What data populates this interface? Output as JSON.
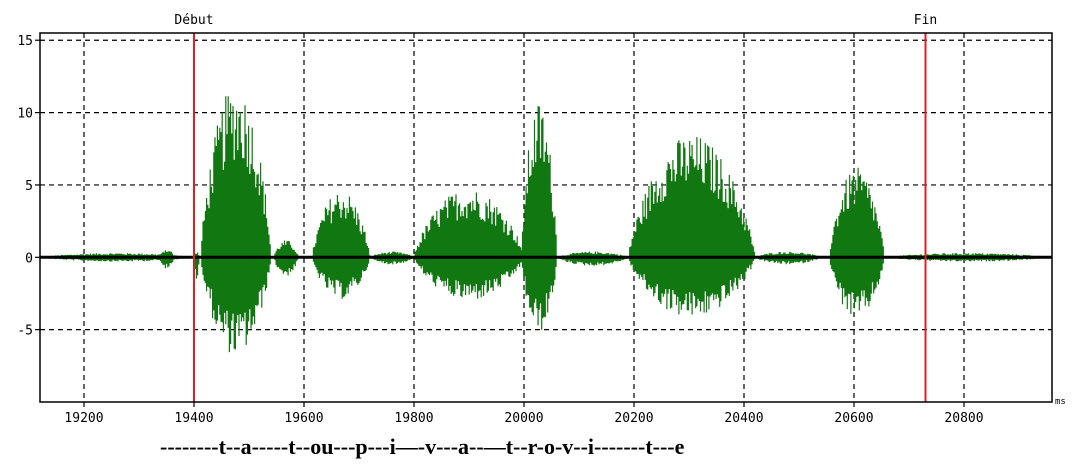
{
  "chart_data": {
    "type": "line",
    "title": "",
    "xlabel": "",
    "ylabel": "",
    "unit_label": "ms",
    "xlim": [
      19120,
      20960
    ],
    "ylim": [
      -10,
      15.5
    ],
    "x_ticks": [
      19200,
      19400,
      19600,
      19800,
      20000,
      20200,
      20400,
      20600,
      20800
    ],
    "x_tick_labels": [
      "19200",
      "19400",
      "19600",
      "19800",
      "20000",
      "20200",
      "20400",
      "20600",
      "20800"
    ],
    "y_ticks": [
      15,
      10,
      5,
      0,
      -5
    ],
    "y_tick_labels": [
      "15",
      "10",
      "5",
      "0",
      "-5"
    ],
    "grid": true,
    "grid_style": "dashed",
    "markers": [
      {
        "label": "Début",
        "x": 19400,
        "color": "#e02020"
      },
      {
        "label": "Fin",
        "x": 20730,
        "color": "#e02020"
      }
    ],
    "waveform_color": "#117711",
    "segments": [
      {
        "start": 19120,
        "end": 19400,
        "max": 0.3,
        "min": -0.3
      },
      {
        "start": 19335,
        "end": 19365,
        "max": 0.6,
        "min": -0.8
      },
      {
        "start": 19400,
        "end": 19410,
        "max": 0.4,
        "min": -1.5
      },
      {
        "start": 19412,
        "end": 19540,
        "max": 12.0,
        "min": -6.8
      },
      {
        "start": 19545,
        "end": 19590,
        "max": 1.2,
        "min": -1.3
      },
      {
        "start": 19615,
        "end": 19720,
        "max": 4.7,
        "min": -2.9
      },
      {
        "start": 19720,
        "end": 19800,
        "max": 0.4,
        "min": -0.5
      },
      {
        "start": 19800,
        "end": 20000,
        "max": 4.8,
        "min": -3.0
      },
      {
        "start": 19995,
        "end": 20060,
        "max": 10.8,
        "min": -5.2
      },
      {
        "start": 20060,
        "end": 20190,
        "max": 0.4,
        "min": -0.6
      },
      {
        "start": 20190,
        "end": 20420,
        "max": 8.5,
        "min": -4.2
      },
      {
        "start": 20420,
        "end": 20540,
        "max": 0.4,
        "min": -0.5
      },
      {
        "start": 20555,
        "end": 20655,
        "max": 6.2,
        "min": -4.3
      },
      {
        "start": 20655,
        "end": 20960,
        "max": 0.3,
        "min": -0.3
      }
    ]
  },
  "transcription": "--------t--a-----t--ou---p---i—-v---a--—t--r-o-v--i-------t---e"
}
